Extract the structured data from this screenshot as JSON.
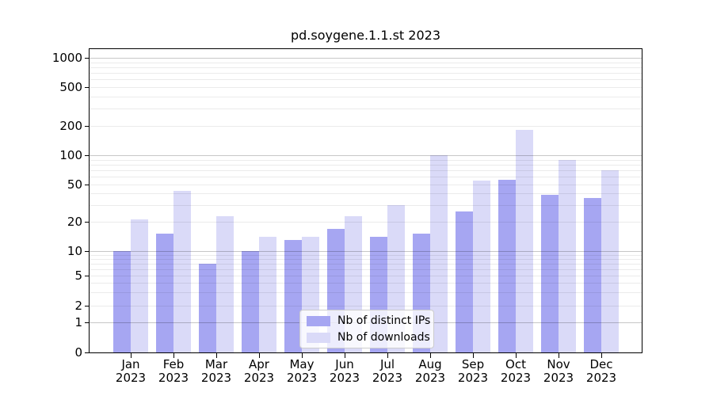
{
  "title": "pd.soygene.1.1.st 2023",
  "chart_data": {
    "type": "bar",
    "title": "pd.soygene.1.1.st 2023",
    "categories": [
      "Jan 2023",
      "Feb 2023",
      "Mar 2023",
      "Apr 2023",
      "May 2023",
      "Jun 2023",
      "Jul 2023",
      "Aug 2023",
      "Sep 2023",
      "Oct 2023",
      "Nov 2023",
      "Dec 2023"
    ],
    "series": [
      {
        "name": "Nb of distinct IPs",
        "color": "#a6a6f2",
        "values": [
          10,
          15,
          7,
          10,
          13,
          17,
          14,
          15,
          26,
          56,
          39,
          36
        ]
      },
      {
        "name": "Nb of downloads",
        "color": "#dadaf8",
        "values": [
          21,
          43,
          23,
          14,
          14,
          23,
          30,
          100,
          55,
          182,
          90,
          70
        ]
      }
    ],
    "y_axis": {
      "scale": "symlog",
      "tick_values": [
        0,
        1,
        2,
        5,
        10,
        20,
        50,
        100,
        200,
        500,
        1000
      ],
      "range": [
        0,
        1000
      ],
      "grid": "horizontal, log minors (2-9 per decade) light, majors at powers of 10 darker"
    },
    "x_axis": {
      "tick_label_format": "month newline year"
    },
    "legend_position": "lower center",
    "xlabel": "",
    "ylabel": ""
  }
}
